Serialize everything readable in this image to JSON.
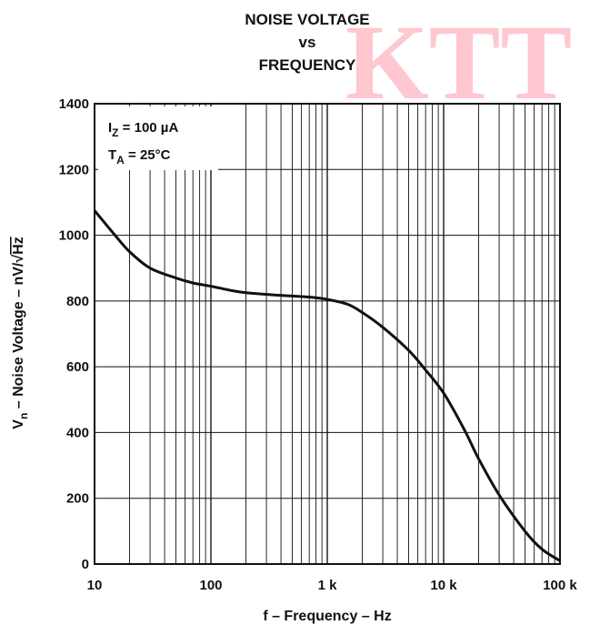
{
  "watermark": "KTT",
  "chart_data": {
    "type": "line",
    "title_lines": [
      "NOISE VOLTAGE",
      "vs",
      "FREQUENCY"
    ],
    "xlabel": "f – Frequency – Hz",
    "ylabel": {
      "prefix": "V",
      "sub": "n",
      "middle": " – Noise Voltage –  nV/",
      "radicand": "Hz"
    },
    "x_scale": "log",
    "xlim": [
      10,
      100000
    ],
    "ylim": [
      0,
      1400
    ],
    "x_ticks": [
      {
        "value": 10,
        "label": "10"
      },
      {
        "value": 100,
        "label": "100"
      },
      {
        "value": 1000,
        "label": "1 k"
      },
      {
        "value": 10000,
        "label": "10 k"
      },
      {
        "value": 100000,
        "label": "100 k"
      }
    ],
    "y_ticks": [
      {
        "value": 0,
        "label": "0"
      },
      {
        "value": 200,
        "label": "200"
      },
      {
        "value": 400,
        "label": "400"
      },
      {
        "value": 600,
        "label": "600"
      },
      {
        "value": 800,
        "label": "800"
      },
      {
        "value": 1000,
        "label": "1000"
      },
      {
        "value": 1200,
        "label": "1200"
      },
      {
        "value": 1400,
        "label": "1400"
      }
    ],
    "grid": true,
    "annotations": [
      {
        "main": "I",
        "sub": "Z",
        "rest": " = 100 µA"
      },
      {
        "main": "T",
        "sub": "A",
        "rest": " = 25°C"
      }
    ],
    "annotation_placement": "top-left",
    "series": [
      {
        "x": [
          10,
          15,
          20,
          30,
          50,
          70,
          100,
          150,
          200,
          300,
          500,
          700,
          1000,
          1500,
          2000,
          3000,
          5000,
          7000,
          10000,
          15000,
          20000,
          30000,
          50000,
          70000,
          100000
        ],
        "y": [
          1075,
          1000,
          950,
          900,
          870,
          855,
          845,
          832,
          825,
          820,
          815,
          812,
          805,
          790,
          765,
          720,
          650,
          590,
          520,
          410,
          320,
          210,
          100,
          45,
          10
        ]
      }
    ],
    "line_color": "#111111"
  }
}
